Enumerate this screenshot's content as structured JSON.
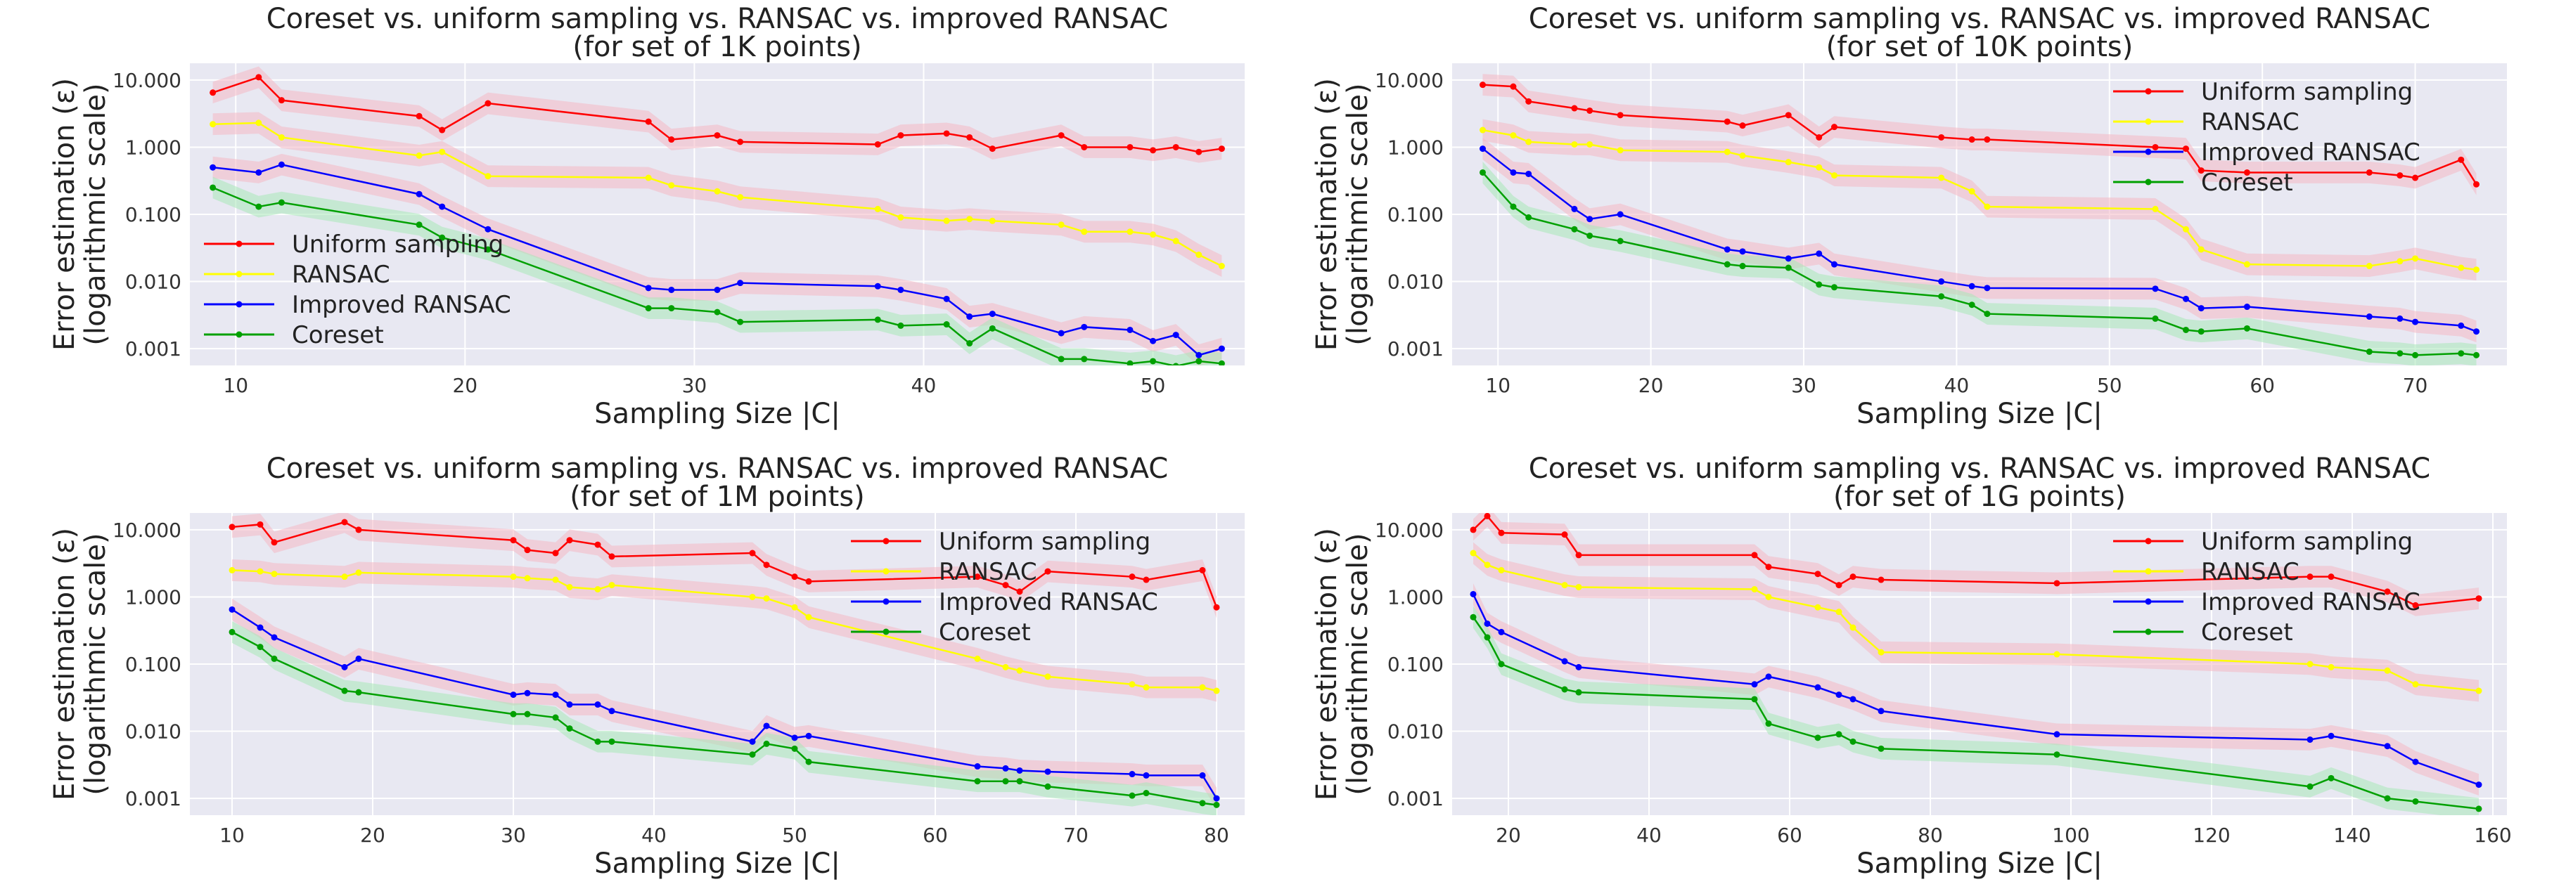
{
  "figure": {
    "panel_count": 4
  },
  "colors": {
    "uniform": "#ff0000",
    "ransac": "#ffff00",
    "improved": "#0000ff",
    "coreset": "#00a000",
    "plot_bg": "#e8e8f2",
    "grid": "#ffffff",
    "band_red": "#f4b8c4",
    "band_green": "#a8e8b8"
  },
  "chart_data": [
    {
      "type": "line",
      "title_line1": "Coreset vs. uniform sampling vs. RANSAC vs. improved RANSAC",
      "title_line2": "(for set of 1K points)",
      "xlabel": "Sampling Size |C|",
      "ylabel_line1": "Error estimation (ε)",
      "ylabel_line2": "(logarithmic scale)",
      "xlim": [
        8,
        54
      ],
      "ylim_log10": [
        -3.25,
        1.25
      ],
      "xticks": [
        10,
        20,
        30,
        40,
        50
      ],
      "yticks": [
        0.001,
        0.01,
        0.1,
        1,
        10
      ],
      "ytick_labels": [
        "0.001",
        "0.010",
        "0.100",
        "1.000",
        "10.000"
      ],
      "legend_position": "center-left",
      "legend": [
        "Uniform sampling",
        "RANSAC",
        "Improved RANSAC",
        "Coreset"
      ],
      "series": [
        {
          "name": "Uniform sampling",
          "key": "uniform",
          "x": [
            9,
            11,
            12,
            18,
            19,
            21,
            28,
            29,
            31,
            32,
            38,
            39,
            41,
            42,
            43,
            46,
            47,
            49,
            50,
            51,
            52,
            53
          ],
          "y": [
            6.5,
            11,
            5.0,
            2.9,
            1.8,
            4.5,
            2.4,
            1.3,
            1.5,
            1.2,
            1.1,
            1.5,
            1.6,
            1.4,
            0.95,
            1.5,
            1.0,
            1.0,
            0.9,
            1.0,
            0.85,
            0.95
          ]
        },
        {
          "name": "RANSAC",
          "key": "ransac",
          "x": [
            9,
            11,
            12,
            18,
            19,
            21,
            28,
            29,
            31,
            32,
            38,
            39,
            41,
            42,
            43,
            46,
            47,
            49,
            50,
            51,
            52,
            53
          ],
          "y": [
            2.2,
            2.3,
            1.4,
            0.75,
            0.85,
            0.37,
            0.35,
            0.27,
            0.22,
            0.18,
            0.12,
            0.09,
            0.08,
            0.085,
            0.08,
            0.07,
            0.055,
            0.055,
            0.05,
            0.04,
            0.025,
            0.017
          ]
        },
        {
          "name": "Improved RANSAC",
          "key": "improved",
          "x": [
            9,
            11,
            12,
            18,
            19,
            21,
            28,
            29,
            31,
            32,
            38,
            39,
            41,
            42,
            43,
            46,
            47,
            49,
            50,
            51,
            52,
            53
          ],
          "y": [
            0.5,
            0.42,
            0.55,
            0.2,
            0.13,
            0.06,
            0.008,
            0.0075,
            0.0075,
            0.0095,
            0.0085,
            0.0075,
            0.0055,
            0.003,
            0.0033,
            0.0017,
            0.0021,
            0.0019,
            0.0013,
            0.0016,
            0.0008,
            0.001
          ]
        },
        {
          "name": "Coreset",
          "key": "coreset",
          "x": [
            9,
            11,
            12,
            18,
            19,
            21,
            28,
            29,
            31,
            32,
            38,
            39,
            41,
            42,
            43,
            46,
            47,
            49,
            50,
            51,
            52,
            53
          ],
          "y": [
            0.25,
            0.13,
            0.15,
            0.07,
            0.045,
            0.03,
            0.004,
            0.004,
            0.0035,
            0.0025,
            0.0027,
            0.0022,
            0.0023,
            0.0012,
            0.002,
            0.0007,
            0.0007,
            0.0006,
            0.00065,
            0.00055,
            0.00065,
            0.0006
          ]
        }
      ]
    },
    {
      "type": "line",
      "title_line1": "Coreset vs. uniform sampling vs. RANSAC vs. improved RANSAC",
      "title_line2": "(for set of 10K points)",
      "xlabel": "Sampling Size |C|",
      "ylabel_line1": "Error estimation (ε)",
      "ylabel_line2": "(logarithmic scale)",
      "xlim": [
        7,
        76
      ],
      "ylim_log10": [
        -3.25,
        1.25
      ],
      "xticks": [
        10,
        20,
        30,
        40,
        50,
        60,
        70
      ],
      "yticks": [
        0.001,
        0.01,
        0.1,
        1,
        10
      ],
      "ytick_labels": [
        "0.001",
        "0.010",
        "0.100",
        "1.000",
        "10.000"
      ],
      "legend_position": "top-right",
      "legend": [
        "Uniform sampling",
        "RANSAC",
        "Improved RANSAC",
        "Coreset"
      ],
      "series": [
        {
          "name": "Uniform sampling",
          "key": "uniform",
          "x": [
            9,
            11,
            12,
            15,
            16,
            18,
            25,
            26,
            29,
            31,
            32,
            39,
            41,
            42,
            53,
            55,
            56,
            59,
            67,
            69,
            70,
            73,
            74
          ],
          "y": [
            8.5,
            8.0,
            4.8,
            3.8,
            3.5,
            3.0,
            2.4,
            2.1,
            3.0,
            1.4,
            2.0,
            1.4,
            1.3,
            1.3,
            1.0,
            0.95,
            0.45,
            0.42,
            0.42,
            0.38,
            0.35,
            0.65,
            0.28
          ]
        },
        {
          "name": "RANSAC",
          "key": "ransac",
          "x": [
            9,
            11,
            12,
            15,
            16,
            18,
            25,
            26,
            29,
            31,
            32,
            39,
            41,
            42,
            53,
            55,
            56,
            59,
            67,
            69,
            70,
            73,
            74
          ],
          "y": [
            1.8,
            1.5,
            1.2,
            1.1,
            1.1,
            0.9,
            0.85,
            0.75,
            0.6,
            0.5,
            0.38,
            0.35,
            0.22,
            0.13,
            0.12,
            0.06,
            0.03,
            0.018,
            0.017,
            0.02,
            0.022,
            0.016,
            0.015
          ]
        },
        {
          "name": "Improved RANSAC",
          "key": "improved",
          "x": [
            9,
            11,
            12,
            15,
            16,
            18,
            25,
            26,
            29,
            31,
            32,
            39,
            41,
            42,
            53,
            55,
            56,
            59,
            67,
            69,
            70,
            73,
            74
          ],
          "y": [
            0.95,
            0.42,
            0.4,
            0.12,
            0.085,
            0.1,
            0.03,
            0.028,
            0.022,
            0.026,
            0.018,
            0.01,
            0.0085,
            0.008,
            0.0078,
            0.0055,
            0.004,
            0.0042,
            0.003,
            0.0028,
            0.0025,
            0.0022,
            0.0018
          ]
        },
        {
          "name": "Coreset",
          "key": "coreset",
          "x": [
            9,
            11,
            12,
            15,
            16,
            18,
            25,
            26,
            29,
            31,
            32,
            39,
            41,
            42,
            53,
            55,
            56,
            59,
            67,
            69,
            70,
            73,
            74
          ],
          "y": [
            0.42,
            0.13,
            0.09,
            0.06,
            0.048,
            0.04,
            0.018,
            0.017,
            0.016,
            0.009,
            0.0082,
            0.006,
            0.0045,
            0.0033,
            0.0028,
            0.0019,
            0.0018,
            0.002,
            0.0009,
            0.00085,
            0.0008,
            0.00085,
            0.0008
          ]
        }
      ]
    },
    {
      "type": "line",
      "title_line1": "Coreset vs. uniform sampling vs. RANSAC vs. improved RANSAC",
      "title_line2": "(for set of 1M points)",
      "xlabel": "Sampling Size |C|",
      "ylabel_line1": "Error estimation (ε)",
      "ylabel_line2": "(logarithmic scale)",
      "xlim": [
        7,
        82
      ],
      "ylim_log10": [
        -3.25,
        1.25
      ],
      "xticks": [
        10,
        20,
        30,
        40,
        50,
        60,
        70,
        80
      ],
      "yticks": [
        0.001,
        0.01,
        0.1,
        1,
        10
      ],
      "ytick_labels": [
        "0.001",
        "0.010",
        "0.100",
        "1.000",
        "10.000"
      ],
      "legend_position": "top-right",
      "legend": [
        "Uniform sampling",
        "RANSAC",
        "Improved RANSAC",
        "Coreset"
      ],
      "series": [
        {
          "name": "Uniform sampling",
          "key": "uniform",
          "x": [
            10,
            12,
            13,
            18,
            19,
            30,
            31,
            33,
            34,
            36,
            37,
            47,
            48,
            50,
            51,
            63,
            65,
            66,
            68,
            74,
            75,
            79,
            80
          ],
          "y": [
            11,
            12,
            6.5,
            13,
            10,
            7.0,
            5.0,
            4.5,
            7.0,
            6.0,
            4.0,
            4.5,
            3.0,
            2.0,
            1.7,
            2.0,
            1.5,
            1.2,
            2.4,
            2.0,
            1.8,
            2.5,
            0.7
          ]
        },
        {
          "name": "RANSAC",
          "key": "ransac",
          "x": [
            10,
            12,
            13,
            18,
            19,
            30,
            31,
            33,
            34,
            36,
            37,
            47,
            48,
            50,
            51,
            63,
            65,
            66,
            68,
            74,
            75,
            79,
            80
          ],
          "y": [
            2.5,
            2.4,
            2.2,
            2.0,
            2.3,
            2.0,
            1.9,
            1.8,
            1.4,
            1.3,
            1.5,
            1.0,
            0.95,
            0.7,
            0.5,
            0.12,
            0.09,
            0.08,
            0.065,
            0.05,
            0.045,
            0.045,
            0.04
          ]
        },
        {
          "name": "Improved RANSAC",
          "key": "improved",
          "x": [
            10,
            12,
            13,
            18,
            19,
            30,
            31,
            33,
            34,
            36,
            37,
            47,
            48,
            50,
            51,
            63,
            65,
            66,
            68,
            74,
            75,
            79,
            80
          ],
          "y": [
            0.65,
            0.35,
            0.25,
            0.09,
            0.12,
            0.035,
            0.037,
            0.035,
            0.025,
            0.025,
            0.02,
            0.007,
            0.012,
            0.008,
            0.0085,
            0.003,
            0.0028,
            0.0026,
            0.0025,
            0.0023,
            0.0022,
            0.0022,
            0.001
          ]
        },
        {
          "name": "Coreset",
          "key": "coreset",
          "x": [
            10,
            12,
            13,
            18,
            19,
            30,
            31,
            33,
            34,
            36,
            37,
            47,
            48,
            50,
            51,
            63,
            65,
            66,
            68,
            74,
            75,
            79,
            80
          ],
          "y": [
            0.3,
            0.18,
            0.12,
            0.04,
            0.038,
            0.018,
            0.018,
            0.016,
            0.011,
            0.007,
            0.007,
            0.0045,
            0.0065,
            0.0055,
            0.0035,
            0.0018,
            0.0018,
            0.0018,
            0.0015,
            0.0011,
            0.0012,
            0.00085,
            0.0008
          ]
        }
      ]
    },
    {
      "type": "line",
      "title_line1": "Coreset vs. uniform sampling vs. RANSAC vs. improved RANSAC",
      "title_line2": "(for set of 1G points)",
      "xlabel": "Sampling Size |C|",
      "ylabel_line1": "Error estimation (ε)",
      "ylabel_line2": "(logarithmic scale)",
      "xlim": [
        12,
        162
      ],
      "ylim_log10": [
        -3.25,
        1.25
      ],
      "xticks": [
        20,
        40,
        60,
        80,
        100,
        120,
        140,
        160
      ],
      "yticks": [
        0.001,
        0.01,
        0.1,
        1,
        10
      ],
      "ytick_labels": [
        "0.001",
        "0.010",
        "0.100",
        "1.000",
        "10.000"
      ],
      "legend_position": "top-right",
      "legend": [
        "Uniform sampling",
        "RANSAC",
        "Improved RANSAC",
        "Coreset"
      ],
      "series": [
        {
          "name": "Uniform sampling",
          "key": "uniform",
          "x": [
            15,
            17,
            19,
            28,
            30,
            55,
            57,
            64,
            67,
            69,
            73,
            98,
            134,
            137,
            145,
            149,
            158
          ],
          "y": [
            10,
            16,
            9,
            8.5,
            4.2,
            4.2,
            2.8,
            2.2,
            1.5,
            2.0,
            1.8,
            1.6,
            2.0,
            2.0,
            1.2,
            0.75,
            0.95
          ]
        },
        {
          "name": "RANSAC",
          "key": "ransac",
          "x": [
            15,
            17,
            19,
            28,
            30,
            55,
            57,
            64,
            67,
            69,
            73,
            98,
            134,
            137,
            145,
            149,
            158
          ],
          "y": [
            4.5,
            3.0,
            2.5,
            1.5,
            1.4,
            1.3,
            1.0,
            0.7,
            0.6,
            0.35,
            0.15,
            0.14,
            0.1,
            0.09,
            0.08,
            0.05,
            0.04
          ]
        },
        {
          "name": "Improved RANSAC",
          "key": "improved",
          "x": [
            15,
            17,
            19,
            28,
            30,
            55,
            57,
            64,
            67,
            69,
            73,
            98,
            134,
            137,
            145,
            149,
            158
          ],
          "y": [
            1.1,
            0.4,
            0.3,
            0.11,
            0.09,
            0.05,
            0.065,
            0.045,
            0.035,
            0.03,
            0.02,
            0.009,
            0.0075,
            0.0085,
            0.006,
            0.0035,
            0.0016
          ]
        },
        {
          "name": "Coreset",
          "key": "coreset",
          "x": [
            15,
            17,
            19,
            28,
            30,
            55,
            57,
            64,
            67,
            69,
            73,
            98,
            134,
            137,
            145,
            149,
            158
          ],
          "y": [
            0.5,
            0.25,
            0.1,
            0.042,
            0.038,
            0.03,
            0.013,
            0.008,
            0.009,
            0.007,
            0.0055,
            0.0045,
            0.0015,
            0.002,
            0.001,
            0.0009,
            0.0007
          ]
        }
      ]
    }
  ]
}
